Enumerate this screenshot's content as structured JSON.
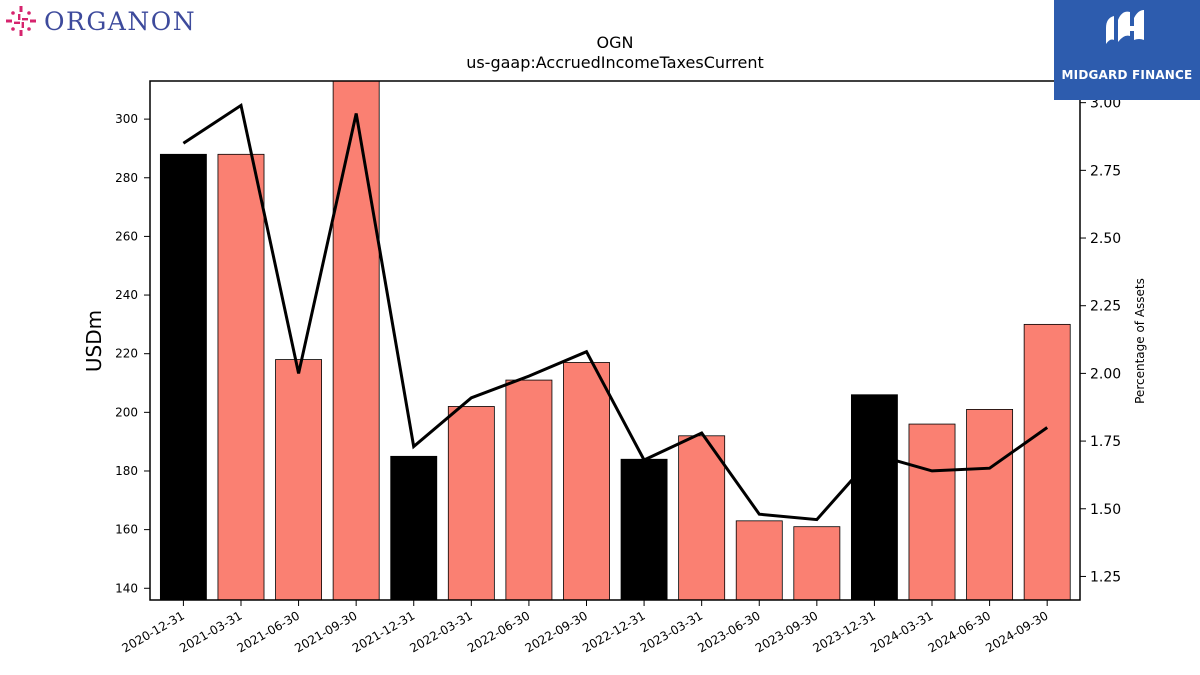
{
  "logos": {
    "left": {
      "text": "ORGANON",
      "color": "#3d4a9c",
      "accent": "#d6246e"
    },
    "right": {
      "text": "MIDGARD FINANCE",
      "background": "#2d5cae"
    }
  },
  "chart_data": {
    "type": "bar",
    "title": "OGN",
    "subtitle": "us-gaap:AccruedIncomeTaxesCurrent",
    "ylabel": "USDm",
    "y2label": "Percentage of Assets",
    "ylim": [
      136,
      313
    ],
    "y2lim": [
      1.163,
      3.08
    ],
    "yticks": [
      140,
      160,
      180,
      200,
      220,
      240,
      260,
      280,
      300
    ],
    "y2ticks": [
      1.25,
      1.5,
      1.75,
      2.0,
      2.25,
      2.5,
      2.75,
      3.0
    ],
    "y2tick_labels": [
      "1.25",
      "1.50",
      "1.75",
      "2.00",
      "2.25",
      "2.50",
      "2.75",
      "3.00"
    ],
    "grid": false,
    "categories": [
      "2020-12-31",
      "2021-03-31",
      "2021-06-30",
      "2021-09-30",
      "2021-12-31",
      "2022-03-31",
      "2022-06-30",
      "2022-09-30",
      "2022-12-31",
      "2023-03-31",
      "2023-06-30",
      "2023-09-30",
      "2023-12-31",
      "2024-03-31",
      "2024-06-30",
      "2024-09-30"
    ],
    "series": [
      {
        "type": "bar",
        "axis": "left",
        "values": [
          288,
          288,
          218,
          314,
          185,
          202,
          211,
          217,
          184,
          192,
          163,
          161,
          206,
          196,
          201,
          230
        ],
        "colors": [
          "#000000",
          "#fa8072",
          "#fa8072",
          "#fa8072",
          "#000000",
          "#fa8072",
          "#fa8072",
          "#fa8072",
          "#000000",
          "#fa8072",
          "#fa8072",
          "#fa8072",
          "#000000",
          "#fa8072",
          "#fa8072",
          "#fa8072"
        ]
      },
      {
        "type": "line",
        "axis": "right",
        "color": "#000000",
        "values": [
          2.85,
          2.99,
          2.0,
          2.96,
          1.73,
          1.91,
          1.99,
          2.08,
          1.68,
          1.78,
          1.48,
          1.46,
          1.7,
          1.64,
          1.65,
          1.8
        ]
      }
    ]
  }
}
